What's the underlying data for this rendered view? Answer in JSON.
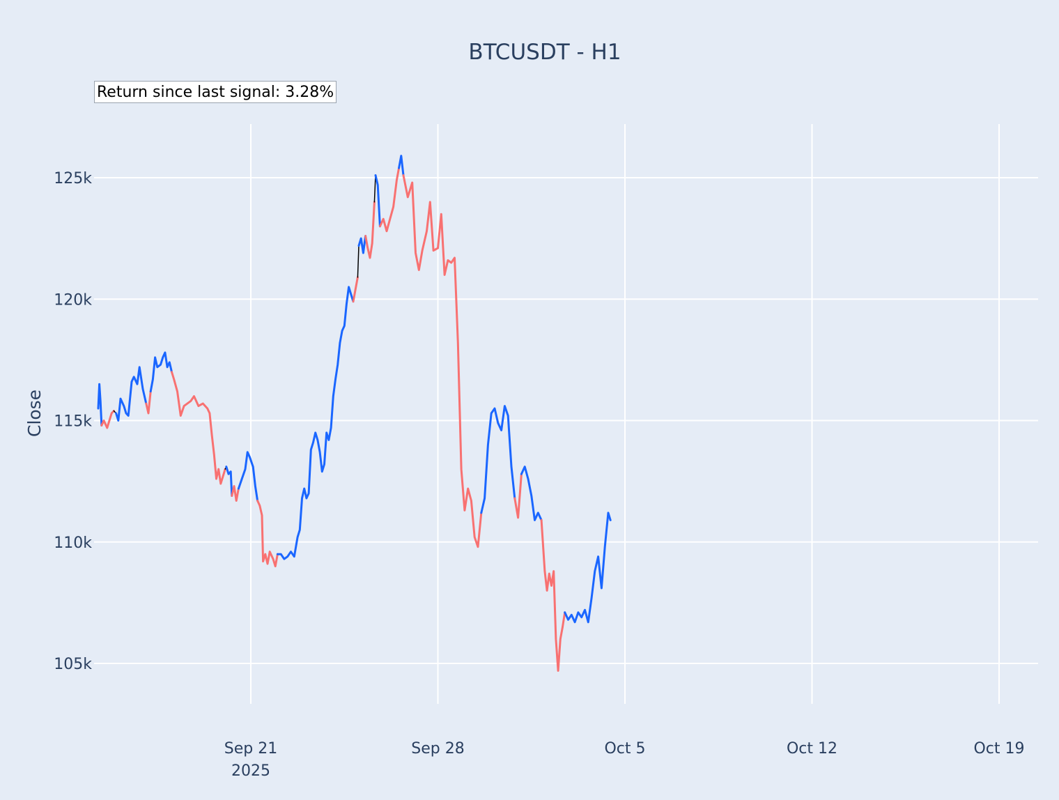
{
  "chart_data": {
    "type": "line",
    "title": "BTCUSDT - H1",
    "ylabel": "Close",
    "xlabel": "",
    "annotation": "Return since last signal: 3.28%",
    "x_range": [
      "2025-09-16",
      "2025-10-20"
    ],
    "ylim": [
      103000,
      127200
    ],
    "yticks": [
      {
        "value": 105000,
        "label": "105k"
      },
      {
        "value": 110000,
        "label": "110k"
      },
      {
        "value": 115000,
        "label": "115k"
      },
      {
        "value": 120000,
        "label": "120k"
      },
      {
        "value": 125000,
        "label": "125k"
      }
    ],
    "xticks": [
      {
        "value": "2025-09-21",
        "label": "Sep 21",
        "sublabel": "2025"
      },
      {
        "value": "2025-09-28",
        "label": "Sep 28",
        "sublabel": ""
      },
      {
        "value": "2025-10-05",
        "label": "Oct 5",
        "sublabel": ""
      },
      {
        "value": "2025-10-12",
        "label": "Oct 12",
        "sublabel": ""
      },
      {
        "value": "2025-10-19",
        "label": "Oct 19",
        "sublabel": ""
      }
    ],
    "grid": true,
    "legend": "none",
    "colors": {
      "up": "#1a66ff",
      "down": "#f87171",
      "neutral": "#000000"
    },
    "series": [
      {
        "state": "up",
        "points": [
          [
            "2025-09-15T07:00",
            115500
          ],
          [
            "2025-09-15T08:00",
            116500
          ],
          [
            "2025-09-15T09:00",
            115800
          ],
          [
            "2025-09-15T10:00",
            114800
          ]
        ]
      },
      {
        "state": "down",
        "points": [
          [
            "2025-09-15T10:00",
            114800
          ],
          [
            "2025-09-15T12:00",
            115000
          ],
          [
            "2025-09-15T15:00",
            114700
          ],
          [
            "2025-09-15T19:00",
            115300
          ],
          [
            "2025-09-15T21:00",
            115400
          ]
        ]
      },
      {
        "state": "neutral",
        "points": [
          [
            "2025-09-15T21:00",
            115400
          ],
          [
            "2025-09-15T23:00",
            115300
          ]
        ]
      },
      {
        "state": "up",
        "points": [
          [
            "2025-09-15T23:00",
            115300
          ],
          [
            "2025-09-16T01:00",
            115000
          ],
          [
            "2025-09-16T03:00",
            115900
          ],
          [
            "2025-09-16T06:00",
            115600
          ],
          [
            "2025-09-16T08:00",
            115300
          ],
          [
            "2025-09-16T10:00",
            115200
          ],
          [
            "2025-09-16T13:00",
            116600
          ],
          [
            "2025-09-16T15:00",
            116800
          ],
          [
            "2025-09-16T18:00",
            116500
          ],
          [
            "2025-09-16T20:00",
            117200
          ],
          [
            "2025-09-16T23:00",
            116300
          ],
          [
            "2025-09-17T02:00",
            115700
          ]
        ]
      },
      {
        "state": "down",
        "points": [
          [
            "2025-09-17T02:00",
            115700
          ],
          [
            "2025-09-17T04:00",
            115300
          ],
          [
            "2025-09-17T06:00",
            116200
          ]
        ]
      },
      {
        "state": "up",
        "points": [
          [
            "2025-09-17T06:00",
            116200
          ],
          [
            "2025-09-17T08:00",
            116700
          ],
          [
            "2025-09-17T10:00",
            117600
          ],
          [
            "2025-09-17T12:00",
            117200
          ],
          [
            "2025-09-17T15:00",
            117300
          ],
          [
            "2025-09-17T17:00",
            117600
          ],
          [
            "2025-09-17T19:00",
            117800
          ],
          [
            "2025-09-17T21:00",
            117200
          ],
          [
            "2025-09-17T23:00",
            117400
          ],
          [
            "2025-09-18T01:00",
            117000
          ]
        ]
      },
      {
        "state": "down",
        "points": [
          [
            "2025-09-18T01:00",
            117000
          ],
          [
            "2025-09-18T03:00",
            116700
          ],
          [
            "2025-09-18T06:00",
            116200
          ],
          [
            "2025-09-18T09:00",
            115200
          ],
          [
            "2025-09-18T12:00",
            115600
          ],
          [
            "2025-09-18T15:00",
            115700
          ],
          [
            "2025-09-18T18:00",
            115800
          ],
          [
            "2025-09-18T21:00",
            116000
          ],
          [
            "2025-09-19T01:00",
            115600
          ],
          [
            "2025-09-19T05:00",
            115700
          ],
          [
            "2025-09-19T09:00",
            115500
          ],
          [
            "2025-09-19T11:00",
            115300
          ],
          [
            "2025-09-19T13:00",
            114400
          ],
          [
            "2025-09-19T15:00",
            113600
          ],
          [
            "2025-09-19T17:00",
            112600
          ],
          [
            "2025-09-19T19:00",
            113000
          ],
          [
            "2025-09-19T21:00",
            112400
          ],
          [
            "2025-09-19T23:00",
            112700
          ],
          [
            "2025-09-20T01:00",
            113000
          ]
        ]
      },
      {
        "state": "neutral",
        "points": [
          [
            "2025-09-20T01:00",
            113000
          ],
          [
            "2025-09-20T02:00",
            113100
          ]
        ]
      },
      {
        "state": "up",
        "points": [
          [
            "2025-09-20T02:00",
            113100
          ],
          [
            "2025-09-20T04:00",
            112800
          ],
          [
            "2025-09-20T06:00",
            112900
          ],
          [
            "2025-09-20T07:00",
            111900
          ]
        ]
      },
      {
        "state": "down",
        "points": [
          [
            "2025-09-20T07:00",
            111900
          ],
          [
            "2025-09-20T09:00",
            112300
          ],
          [
            "2025-09-20T11:00",
            111700
          ],
          [
            "2025-09-20T13:00",
            112200
          ]
        ]
      },
      {
        "state": "up",
        "points": [
          [
            "2025-09-20T13:00",
            112200
          ],
          [
            "2025-09-20T16:00",
            112600
          ],
          [
            "2025-09-20T19:00",
            113000
          ],
          [
            "2025-09-20T21:00",
            113700
          ],
          [
            "2025-09-20T23:00",
            113500
          ],
          [
            "2025-09-21T02:00",
            113100
          ],
          [
            "2025-09-21T04:00",
            112300
          ],
          [
            "2025-09-21T06:00",
            111700
          ]
        ]
      },
      {
        "state": "down",
        "points": [
          [
            "2025-09-21T06:00",
            111700
          ],
          [
            "2025-09-21T08:00",
            111500
          ],
          [
            "2025-09-21T10:00",
            111100
          ],
          [
            "2025-09-21T11:00",
            109200
          ],
          [
            "2025-09-21T13:00",
            109500
          ],
          [
            "2025-09-21T15:00",
            109100
          ],
          [
            "2025-09-21T17:00",
            109600
          ],
          [
            "2025-09-21T20:00",
            109300
          ],
          [
            "2025-09-21T22:00",
            109000
          ],
          [
            "2025-09-22T00:00",
            109500
          ]
        ]
      },
      {
        "state": "up",
        "points": [
          [
            "2025-09-22T00:00",
            109500
          ],
          [
            "2025-09-22T03:00",
            109500
          ],
          [
            "2025-09-22T06:00",
            109300
          ],
          [
            "2025-09-22T09:00",
            109400
          ],
          [
            "2025-09-22T12:00",
            109600
          ],
          [
            "2025-09-22T15:00",
            109400
          ],
          [
            "2025-09-22T18:00",
            110200
          ],
          [
            "2025-09-22T20:00",
            110500
          ],
          [
            "2025-09-22T22:00",
            111800
          ],
          [
            "2025-09-23T00:00",
            112200
          ],
          [
            "2025-09-23T02:00",
            111800
          ],
          [
            "2025-09-23T04:00",
            112000
          ],
          [
            "2025-09-23T06:00",
            113800
          ],
          [
            "2025-09-23T08:00",
            114100
          ],
          [
            "2025-09-23T10:00",
            114500
          ],
          [
            "2025-09-23T12:00",
            114200
          ],
          [
            "2025-09-23T14:00",
            113700
          ],
          [
            "2025-09-23T16:00",
            112900
          ],
          [
            "2025-09-23T18:00",
            113200
          ],
          [
            "2025-09-23T20:00",
            114500
          ],
          [
            "2025-09-23T22:00",
            114200
          ],
          [
            "2025-09-24T00:00",
            114700
          ],
          [
            "2025-09-24T02:00",
            116000
          ],
          [
            "2025-09-24T04:00",
            116700
          ],
          [
            "2025-09-24T06:00",
            117300
          ],
          [
            "2025-09-24T08:00",
            118200
          ],
          [
            "2025-09-24T10:00",
            118700
          ],
          [
            "2025-09-24T12:00",
            118900
          ],
          [
            "2025-09-24T14:00",
            119800
          ],
          [
            "2025-09-24T16:00",
            120500
          ],
          [
            "2025-09-24T18:00",
            120200
          ],
          [
            "2025-09-24T20:00",
            119900
          ]
        ]
      },
      {
        "state": "down",
        "points": [
          [
            "2025-09-24T20:00",
            119900
          ],
          [
            "2025-09-24T22:00",
            120400
          ],
          [
            "2025-09-25T00:00",
            120900
          ]
        ]
      },
      {
        "state": "neutral",
        "points": [
          [
            "2025-09-25T00:00",
            120900
          ],
          [
            "2025-09-25T01:00",
            122200
          ]
        ]
      },
      {
        "state": "up",
        "points": [
          [
            "2025-09-25T01:00",
            122200
          ],
          [
            "2025-09-25T03:00",
            122500
          ],
          [
            "2025-09-25T05:00",
            121900
          ],
          [
            "2025-09-25T07:00",
            122600
          ]
        ]
      },
      {
        "state": "down",
        "points": [
          [
            "2025-09-25T07:00",
            122600
          ],
          [
            "2025-09-25T09:00",
            122100
          ],
          [
            "2025-09-25T11:00",
            121700
          ],
          [
            "2025-09-25T13:00",
            122300
          ],
          [
            "2025-09-25T15:00",
            124000
          ]
        ]
      },
      {
        "state": "neutral",
        "points": [
          [
            "2025-09-25T15:00",
            124000
          ],
          [
            "2025-09-25T16:00",
            125100
          ]
        ]
      },
      {
        "state": "up",
        "points": [
          [
            "2025-09-25T16:00",
            125100
          ],
          [
            "2025-09-25T18:00",
            124700
          ],
          [
            "2025-09-25T20:00",
            123000
          ]
        ]
      },
      {
        "state": "down",
        "points": [
          [
            "2025-09-25T20:00",
            123000
          ],
          [
            "2025-09-25T23:00",
            123300
          ],
          [
            "2025-09-26T02:00",
            122800
          ],
          [
            "2025-09-26T05:00",
            123300
          ],
          [
            "2025-09-26T08:00",
            123800
          ],
          [
            "2025-09-26T11:00",
            124900
          ],
          [
            "2025-09-26T13:00",
            125400
          ]
        ]
      },
      {
        "state": "up",
        "points": [
          [
            "2025-09-26T13:00",
            125400
          ],
          [
            "2025-09-26T15:00",
            125900
          ],
          [
            "2025-09-26T17:00",
            125100
          ]
        ]
      },
      {
        "state": "down",
        "points": [
          [
            "2025-09-26T17:00",
            125100
          ],
          [
            "2025-09-26T21:00",
            124200
          ],
          [
            "2025-09-27T01:00",
            124800
          ],
          [
            "2025-09-27T04:00",
            121900
          ],
          [
            "2025-09-27T07:00",
            121200
          ],
          [
            "2025-09-27T10:00",
            122000
          ],
          [
            "2025-09-27T14:00",
            122800
          ],
          [
            "2025-09-27T17:00",
            124000
          ],
          [
            "2025-09-27T20:00",
            122000
          ],
          [
            "2025-09-28T00:00",
            122100
          ],
          [
            "2025-09-28T03:00",
            123500
          ],
          [
            "2025-09-28T06:00",
            121000
          ],
          [
            "2025-09-28T09:00",
            121600
          ],
          [
            "2025-09-28T12:00",
            121500
          ],
          [
            "2025-09-28T15:00",
            121700
          ],
          [
            "2025-09-28T18:00",
            118200
          ],
          [
            "2025-09-28T21:00",
            113000
          ],
          [
            "2025-09-29T00:00",
            111300
          ],
          [
            "2025-09-29T03:00",
            112200
          ],
          [
            "2025-09-29T06:00",
            111700
          ],
          [
            "2025-09-29T09:00",
            110200
          ],
          [
            "2025-09-29T12:00",
            109800
          ],
          [
            "2025-09-29T15:00",
            111200
          ]
        ]
      },
      {
        "state": "up",
        "points": [
          [
            "2025-09-29T15:00",
            111200
          ],
          [
            "2025-09-29T18:00",
            111800
          ],
          [
            "2025-09-29T21:00",
            114000
          ],
          [
            "2025-09-30T00:00",
            115300
          ],
          [
            "2025-09-30T03:00",
            115500
          ],
          [
            "2025-09-30T06:00",
            114900
          ],
          [
            "2025-09-30T09:00",
            114600
          ],
          [
            "2025-09-30T12:00",
            115600
          ],
          [
            "2025-09-30T15:00",
            115200
          ],
          [
            "2025-09-30T18:00",
            113100
          ],
          [
            "2025-09-30T21:00",
            111800
          ]
        ]
      },
      {
        "state": "down",
        "points": [
          [
            "2025-09-30T21:00",
            111800
          ],
          [
            "2025-10-01T00:00",
            111000
          ],
          [
            "2025-10-01T03:00",
            112800
          ]
        ]
      },
      {
        "state": "up",
        "points": [
          [
            "2025-10-01T03:00",
            112800
          ],
          [
            "2025-10-01T06:00",
            113100
          ],
          [
            "2025-10-01T09:00",
            112600
          ],
          [
            "2025-10-01T12:00",
            111900
          ],
          [
            "2025-10-01T15:00",
            110900
          ],
          [
            "2025-10-01T18:00",
            111200
          ],
          [
            "2025-10-01T21:00",
            110900
          ]
        ]
      },
      {
        "state": "down",
        "points": [
          [
            "2025-10-01T21:00",
            110900
          ],
          [
            "2025-10-02T00:00",
            108800
          ],
          [
            "2025-10-02T02:00",
            108000
          ],
          [
            "2025-10-02T04:00",
            108700
          ],
          [
            "2025-10-02T06:00",
            108200
          ],
          [
            "2025-10-02T08:00",
            108800
          ],
          [
            "2025-10-02T10:00",
            106000
          ],
          [
            "2025-10-02T12:00",
            104700
          ],
          [
            "2025-10-02T14:00",
            106000
          ],
          [
            "2025-10-02T16:00",
            106500
          ],
          [
            "2025-10-02T18:00",
            107100
          ]
        ]
      },
      {
        "state": "up",
        "points": [
          [
            "2025-10-02T18:00",
            107100
          ],
          [
            "2025-10-02T21:00",
            106800
          ],
          [
            "2025-10-03T00:00",
            107000
          ],
          [
            "2025-10-03T03:00",
            106700
          ],
          [
            "2025-10-03T06:00",
            107100
          ],
          [
            "2025-10-03T09:00",
            106900
          ],
          [
            "2025-10-03T12:00",
            107200
          ],
          [
            "2025-10-03T15:00",
            106700
          ],
          [
            "2025-10-03T18:00",
            107700
          ],
          [
            "2025-10-03T21:00",
            108800
          ],
          [
            "2025-10-04T00:00",
            109400
          ],
          [
            "2025-10-04T03:00",
            108100
          ],
          [
            "2025-10-04T06:00",
            109800
          ],
          [
            "2025-10-04T09:00",
            111200
          ],
          [
            "2025-10-04T11:00",
            110900
          ]
        ]
      }
    ]
  }
}
